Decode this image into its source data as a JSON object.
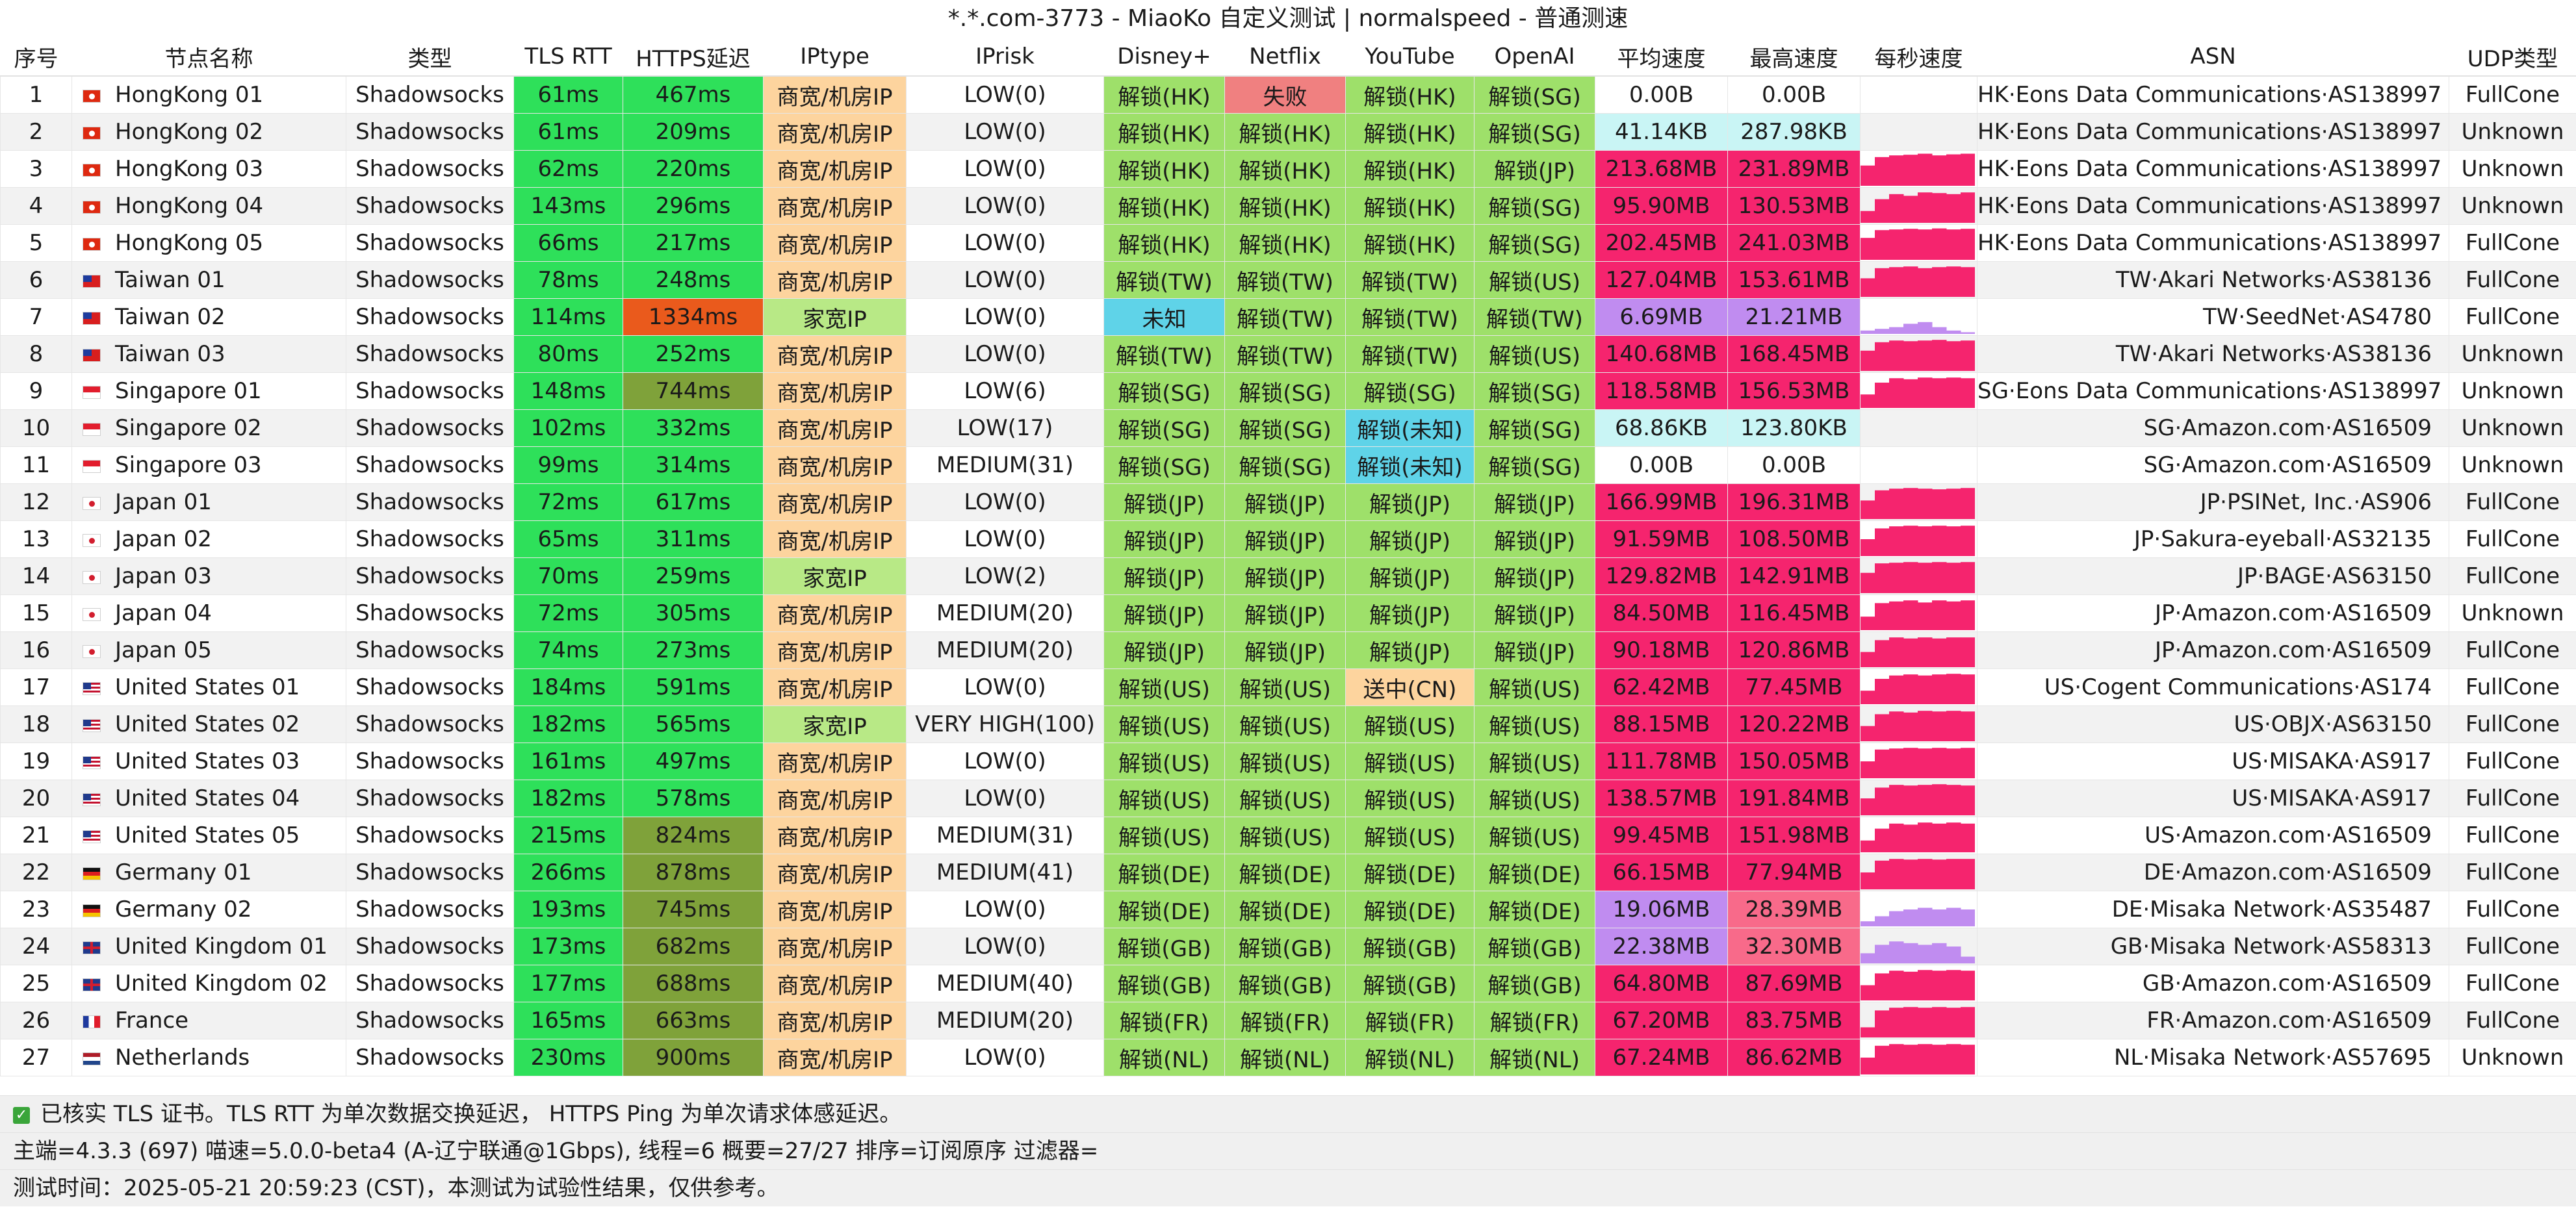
{
  "title": "*.*.com-3773 - MiaoKo 自定义测试 | normalspeed - 普通测速",
  "headers": [
    "序号",
    "节点名称",
    "类型",
    "TLS RTT",
    "HTTPS延迟",
    "IPtype",
    "IPrisk",
    "Disney+",
    "Netflix",
    "YouTube",
    "OpenAI",
    "平均速度",
    "最高速度",
    "每秒速度",
    "ASN",
    "UDP类型"
  ],
  "rows": [
    {
      "id": "1",
      "flag": "hk",
      "name": "HongKong 01",
      "type": "Shadowsocks",
      "tls": "61ms",
      "https": "467ms",
      "iptype": "商宽/机房IP",
      "iprisk": "LOW(0)",
      "disney": "解锁(HK)",
      "netflix": "失败",
      "youtube": "解锁(HK)",
      "openai": "解锁(SG)",
      "avg": "0.00B",
      "max": "0.00B",
      "persec": [],
      "asn": "HK·Eons Data Communications·AS138997",
      "udp": "FullCone"
    },
    {
      "id": "2",
      "flag": "hk",
      "name": "HongKong 02",
      "type": "Shadowsocks",
      "tls": "61ms",
      "https": "209ms",
      "iptype": "商宽/机房IP",
      "iprisk": "LOW(0)",
      "disney": "解锁(HK)",
      "netflix": "解锁(HK)",
      "youtube": "解锁(HK)",
      "openai": "解锁(SG)",
      "avg": "41.14KB",
      "max": "287.98KB",
      "persec": [],
      "asn": "HK·Eons Data Communications·AS138997",
      "udp": "Unknown"
    },
    {
      "id": "3",
      "flag": "hk",
      "name": "HongKong 03",
      "type": "Shadowsocks",
      "tls": "62ms",
      "https": "220ms",
      "iptype": "商宽/机房IP",
      "iprisk": "LOW(0)",
      "disney": "解锁(HK)",
      "netflix": "解锁(HK)",
      "youtube": "解锁(HK)",
      "openai": "解锁(JP)",
      "avg": "213.68MB",
      "max": "231.89MB",
      "persec": [
        0.6,
        0.85,
        0.9,
        0.92,
        0.95,
        0.9,
        0.93,
        0.95
      ],
      "asn": "HK·Eons Data Communications·AS138997",
      "udp": "Unknown"
    },
    {
      "id": "4",
      "flag": "hk",
      "name": "HongKong 04",
      "type": "Shadowsocks",
      "tls": "143ms",
      "https": "296ms",
      "iptype": "商宽/机房IP",
      "iprisk": "LOW(0)",
      "disney": "解锁(HK)",
      "netflix": "解锁(HK)",
      "youtube": "解锁(HK)",
      "openai": "解锁(SG)",
      "avg": "95.90MB",
      "max": "130.53MB",
      "persec": [
        0.35,
        0.7,
        0.85,
        0.8,
        0.9,
        0.88,
        0.85,
        0.9
      ],
      "asn": "HK·Eons Data Communications·AS138997",
      "udp": "Unknown"
    },
    {
      "id": "5",
      "flag": "hk",
      "name": "HongKong 05",
      "type": "Shadowsocks",
      "tls": "66ms",
      "https": "217ms",
      "iptype": "商宽/机房IP",
      "iprisk": "LOW(0)",
      "disney": "解锁(HK)",
      "netflix": "解锁(HK)",
      "youtube": "解锁(HK)",
      "openai": "解锁(SG)",
      "avg": "202.45MB",
      "max": "241.03MB",
      "persec": [
        0.65,
        0.88,
        0.9,
        0.92,
        0.9,
        0.93,
        0.9,
        0.92
      ],
      "asn": "HK·Eons Data Communications·AS138997",
      "udp": "FullCone"
    },
    {
      "id": "6",
      "flag": "tw",
      "name": "Taiwan 01",
      "type": "Shadowsocks",
      "tls": "78ms",
      "https": "248ms",
      "iptype": "商宽/机房IP",
      "iprisk": "LOW(0)",
      "disney": "解锁(TW)",
      "netflix": "解锁(TW)",
      "youtube": "解锁(TW)",
      "openai": "解锁(US)",
      "avg": "127.04MB",
      "max": "153.61MB",
      "persec": [
        0.55,
        0.85,
        0.88,
        0.9,
        0.85,
        0.88,
        0.9,
        0.88
      ],
      "asn": "TW·Akari Networks·AS38136",
      "udp": "FullCone"
    },
    {
      "id": "7",
      "flag": "tw",
      "name": "Taiwan 02",
      "type": "Shadowsocks",
      "tls": "114ms",
      "https": "1334ms",
      "iptype": "家宽IP",
      "iprisk": "LOW(0)",
      "disney": "未知",
      "netflix": "解锁(TW)",
      "youtube": "解锁(TW)",
      "openai": "解锁(TW)",
      "avg": "6.69MB",
      "max": "21.21MB",
      "persec": [
        0.1,
        0.15,
        0.2,
        0.3,
        0.35,
        0.2,
        0.1,
        0.05
      ],
      "asn": "TW·SeedNet·AS4780",
      "udp": "FullCone"
    },
    {
      "id": "8",
      "flag": "tw",
      "name": "Taiwan 03",
      "type": "Shadowsocks",
      "tls": "80ms",
      "https": "252ms",
      "iptype": "商宽/机房IP",
      "iprisk": "LOW(0)",
      "disney": "解锁(TW)",
      "netflix": "解锁(TW)",
      "youtube": "解锁(TW)",
      "openai": "解锁(US)",
      "avg": "140.68MB",
      "max": "168.45MB",
      "persec": [
        0.6,
        0.85,
        0.9,
        0.88,
        0.9,
        0.92,
        0.88,
        0.9
      ],
      "asn": "TW·Akari Networks·AS38136",
      "udp": "Unknown"
    },
    {
      "id": "9",
      "flag": "sg",
      "name": "Singapore 01",
      "type": "Shadowsocks",
      "tls": "148ms",
      "https": "744ms",
      "iptype": "商宽/机房IP",
      "iprisk": "LOW(6)",
      "disney": "解锁(SG)",
      "netflix": "解锁(SG)",
      "youtube": "解锁(SG)",
      "openai": "解锁(SG)",
      "avg": "118.58MB",
      "max": "156.53MB",
      "persec": [
        0.4,
        0.75,
        0.88,
        0.85,
        0.9,
        0.88,
        0.9,
        0.88
      ],
      "asn": "SG·Eons Data Communications·AS138997",
      "udp": "Unknown"
    },
    {
      "id": "10",
      "flag": "sg",
      "name": "Singapore 02",
      "type": "Shadowsocks",
      "tls": "102ms",
      "https": "332ms",
      "iptype": "商宽/机房IP",
      "iprisk": "LOW(17)",
      "disney": "解锁(SG)",
      "netflix": "解锁(SG)",
      "youtube": "解锁(未知)",
      "openai": "解锁(SG)",
      "avg": "68.86KB",
      "max": "123.80KB",
      "persec": [],
      "asn": "SG·Amazon.com·AS16509",
      "udp": "Unknown"
    },
    {
      "id": "11",
      "flag": "sg",
      "name": "Singapore 03",
      "type": "Shadowsocks",
      "tls": "99ms",
      "https": "314ms",
      "iptype": "商宽/机房IP",
      "iprisk": "MEDIUM(31)",
      "disney": "解锁(SG)",
      "netflix": "解锁(SG)",
      "youtube": "解锁(未知)",
      "openai": "解锁(SG)",
      "avg": "0.00B",
      "max": "0.00B",
      "persec": [],
      "asn": "SG·Amazon.com·AS16509",
      "udp": "Unknown"
    },
    {
      "id": "12",
      "flag": "jp",
      "name": "Japan 01",
      "type": "Shadowsocks",
      "tls": "72ms",
      "https": "617ms",
      "iptype": "商宽/机房IP",
      "iprisk": "LOW(0)",
      "disney": "解锁(JP)",
      "netflix": "解锁(JP)",
      "youtube": "解锁(JP)",
      "openai": "解锁(JP)",
      "avg": "166.99MB",
      "max": "196.31MB",
      "persec": [
        0.55,
        0.85,
        0.9,
        0.92,
        0.9,
        0.88,
        0.9,
        0.92
      ],
      "asn": "JP·PSINet, Inc.·AS906",
      "udp": "FullCone"
    },
    {
      "id": "13",
      "flag": "jp",
      "name": "Japan 02",
      "type": "Shadowsocks",
      "tls": "65ms",
      "https": "311ms",
      "iptype": "商宽/机房IP",
      "iprisk": "LOW(0)",
      "disney": "解锁(JP)",
      "netflix": "解锁(JP)",
      "youtube": "解锁(JP)",
      "openai": "解锁(JP)",
      "avg": "91.59MB",
      "max": "108.50MB",
      "persec": [
        0.5,
        0.82,
        0.88,
        0.9,
        0.88,
        0.9,
        0.88,
        0.9
      ],
      "asn": "JP·Sakura-eyeball·AS32135",
      "udp": "FullCone"
    },
    {
      "id": "14",
      "flag": "jp",
      "name": "Japan 03",
      "type": "Shadowsocks",
      "tls": "70ms",
      "https": "259ms",
      "iptype": "家宽IP",
      "iprisk": "LOW(2)",
      "disney": "解锁(JP)",
      "netflix": "解锁(JP)",
      "youtube": "解锁(JP)",
      "openai": "解锁(JP)",
      "avg": "129.82MB",
      "max": "142.91MB",
      "persec": [
        0.6,
        0.88,
        0.9,
        0.92,
        0.9,
        0.92,
        0.9,
        0.92
      ],
      "asn": "JP·BAGE·AS63150",
      "udp": "FullCone"
    },
    {
      "id": "15",
      "flag": "jp",
      "name": "Japan 04",
      "type": "Shadowsocks",
      "tls": "72ms",
      "https": "305ms",
      "iptype": "商宽/机房IP",
      "iprisk": "MEDIUM(20)",
      "disney": "解锁(JP)",
      "netflix": "解锁(JP)",
      "youtube": "解锁(JP)",
      "openai": "解锁(JP)",
      "avg": "84.50MB",
      "max": "116.45MB",
      "persec": [
        0.4,
        0.8,
        0.85,
        0.88,
        0.82,
        0.88,
        0.85,
        0.88
      ],
      "asn": "JP·Amazon.com·AS16509",
      "udp": "Unknown"
    },
    {
      "id": "16",
      "flag": "jp",
      "name": "Japan 05",
      "type": "Shadowsocks",
      "tls": "74ms",
      "https": "273ms",
      "iptype": "商宽/机房IP",
      "iprisk": "MEDIUM(20)",
      "disney": "解锁(JP)",
      "netflix": "解锁(JP)",
      "youtube": "解锁(JP)",
      "openai": "解锁(JP)",
      "avg": "90.18MB",
      "max": "120.86MB",
      "persec": [
        0.45,
        0.8,
        0.88,
        0.85,
        0.88,
        0.85,
        0.88,
        0.88
      ],
      "asn": "JP·Amazon.com·AS16509",
      "udp": "FullCone"
    },
    {
      "id": "17",
      "flag": "us",
      "name": "United States 01",
      "type": "Shadowsocks",
      "tls": "184ms",
      "https": "591ms",
      "iptype": "商宽/机房IP",
      "iprisk": "LOW(0)",
      "disney": "解锁(US)",
      "netflix": "解锁(US)",
      "youtube": "送中(CN)",
      "openai": "解锁(US)",
      "avg": "62.42MB",
      "max": "77.45MB",
      "persec": [
        0.4,
        0.75,
        0.85,
        0.88,
        0.85,
        0.88,
        0.9,
        0.88
      ],
      "asn": "US·Cogent Communications·AS174",
      "udp": "FullCone"
    },
    {
      "id": "18",
      "flag": "us",
      "name": "United States 02",
      "type": "Shadowsocks",
      "tls": "182ms",
      "https": "565ms",
      "iptype": "家宽IP",
      "iprisk": "VERY HIGH(100)",
      "disney": "解锁(US)",
      "netflix": "解锁(US)",
      "youtube": "解锁(US)",
      "openai": "解锁(US)",
      "avg": "88.15MB",
      "max": "120.22MB",
      "persec": [
        0.45,
        0.8,
        0.88,
        0.85,
        0.9,
        0.88,
        0.9,
        0.88
      ],
      "asn": "US·OBJX·AS63150",
      "udp": "FullCone"
    },
    {
      "id": "19",
      "flag": "us",
      "name": "United States 03",
      "type": "Shadowsocks",
      "tls": "161ms",
      "https": "497ms",
      "iptype": "商宽/机房IP",
      "iprisk": "LOW(0)",
      "disney": "解锁(US)",
      "netflix": "解锁(US)",
      "youtube": "解锁(US)",
      "openai": "解锁(US)",
      "avg": "111.78MB",
      "max": "150.05MB",
      "persec": [
        0.5,
        0.85,
        0.88,
        0.9,
        0.88,
        0.9,
        0.88,
        0.9
      ],
      "asn": "US·MISAKA·AS917",
      "udp": "FullCone"
    },
    {
      "id": "20",
      "flag": "us",
      "name": "United States 04",
      "type": "Shadowsocks",
      "tls": "182ms",
      "https": "578ms",
      "iptype": "商宽/机房IP",
      "iprisk": "LOW(0)",
      "disney": "解锁(US)",
      "netflix": "解锁(US)",
      "youtube": "解锁(US)",
      "openai": "解锁(US)",
      "avg": "138.57MB",
      "max": "191.84MB",
      "persec": [
        0.5,
        0.82,
        0.9,
        0.88,
        0.9,
        0.92,
        0.9,
        0.88
      ],
      "asn": "US·MISAKA·AS917",
      "udp": "FullCone"
    },
    {
      "id": "21",
      "flag": "us",
      "name": "United States 05",
      "type": "Shadowsocks",
      "tls": "215ms",
      "https": "824ms",
      "iptype": "商宽/机房IP",
      "iprisk": "MEDIUM(31)",
      "disney": "解锁(US)",
      "netflix": "解锁(US)",
      "youtube": "解锁(US)",
      "openai": "解锁(US)",
      "avg": "99.45MB",
      "max": "151.98MB",
      "persec": [
        0.35,
        0.7,
        0.85,
        0.82,
        0.88,
        0.85,
        0.88,
        0.85
      ],
      "asn": "US·Amazon.com·AS16509",
      "udp": "FullCone"
    },
    {
      "id": "22",
      "flag": "de",
      "name": "Germany 01",
      "type": "Shadowsocks",
      "tls": "266ms",
      "https": "878ms",
      "iptype": "商宽/机房IP",
      "iprisk": "MEDIUM(41)",
      "disney": "解锁(DE)",
      "netflix": "解锁(DE)",
      "youtube": "解锁(DE)",
      "openai": "解锁(DE)",
      "avg": "66.15MB",
      "max": "77.94MB",
      "persec": [
        0.5,
        0.85,
        0.9,
        0.88,
        0.9,
        0.88,
        0.9,
        0.9
      ],
      "asn": "DE·Amazon.com·AS16509",
      "udp": "FullCone"
    },
    {
      "id": "23",
      "flag": "de",
      "name": "Germany 02",
      "type": "Shadowsocks",
      "tls": "193ms",
      "https": "745ms",
      "iptype": "商宽/机房IP",
      "iprisk": "LOW(0)",
      "disney": "解锁(DE)",
      "netflix": "解锁(DE)",
      "youtube": "解锁(DE)",
      "openai": "解锁(DE)",
      "avg": "19.06MB",
      "max": "28.39MB",
      "persec": [
        0.15,
        0.3,
        0.45,
        0.5,
        0.55,
        0.5,
        0.55,
        0.5
      ],
      "asn": "DE·Misaka Network·AS35487",
      "udp": "FullCone"
    },
    {
      "id": "24",
      "flag": "gb",
      "name": "United Kingdom 01",
      "type": "Shadowsocks",
      "tls": "173ms",
      "https": "682ms",
      "iptype": "商宽/机房IP",
      "iprisk": "LOW(0)",
      "disney": "解锁(GB)",
      "netflix": "解锁(GB)",
      "youtube": "解锁(GB)",
      "openai": "解锁(GB)",
      "avg": "22.38MB",
      "max": "32.30MB",
      "persec": [
        0.3,
        0.55,
        0.65,
        0.6,
        0.55,
        0.6,
        0.5,
        0.2
      ],
      "asn": "GB·Misaka Network·AS58313",
      "udp": "FullCone"
    },
    {
      "id": "25",
      "flag": "gb",
      "name": "United Kingdom 02",
      "type": "Shadowsocks",
      "tls": "177ms",
      "https": "688ms",
      "iptype": "商宽/机房IP",
      "iprisk": "MEDIUM(40)",
      "disney": "解锁(GB)",
      "netflix": "解锁(GB)",
      "youtube": "解锁(GB)",
      "openai": "解锁(GB)",
      "avg": "64.80MB",
      "max": "87.69MB",
      "persec": [
        0.45,
        0.8,
        0.88,
        0.85,
        0.9,
        0.88,
        0.9,
        0.88
      ],
      "asn": "GB·Amazon.com·AS16509",
      "udp": "FullCone"
    },
    {
      "id": "26",
      "flag": "fr",
      "name": "France",
      "type": "Shadowsocks",
      "tls": "165ms",
      "https": "663ms",
      "iptype": "商宽/机房IP",
      "iprisk": "MEDIUM(20)",
      "disney": "解锁(FR)",
      "netflix": "解锁(FR)",
      "youtube": "解锁(FR)",
      "openai": "解锁(FR)",
      "avg": "67.20MB",
      "max": "83.75MB",
      "persec": [
        0.3,
        0.8,
        0.88,
        0.9,
        0.88,
        0.9,
        0.88,
        0.9
      ],
      "asn": "FR·Amazon.com·AS16509",
      "udp": "FullCone"
    },
    {
      "id": "27",
      "flag": "nl",
      "name": "Netherlands",
      "type": "Shadowsocks",
      "tls": "230ms",
      "https": "900ms",
      "iptype": "商宽/机房IP",
      "iprisk": "LOW(0)",
      "disney": "解锁(NL)",
      "netflix": "解锁(NL)",
      "youtube": "解锁(NL)",
      "openai": "解锁(NL)",
      "avg": "67.24MB",
      "max": "86.62MB",
      "persec": [
        0.5,
        0.85,
        0.9,
        0.88,
        0.9,
        0.88,
        0.9,
        0.88
      ],
      "asn": "NL·Misaka Network·AS57695",
      "udp": "Unknown"
    }
  ],
  "footer": {
    "verified": "已核实 TLS 证书。TLS RTT 为单次数据交换延迟， HTTPS Ping 为单次请求体感延迟。",
    "info": "主端=4.3.3 (697) 喵速=5.0.0-beta4 (A-辽宁联通@1Gbps), 线程=6 概要=27/27 排序=订阅原序 过滤器=",
    "time": "测试时间：2025-05-21 20:59:23 (CST)，本测试为试验性结果，仅供参考。"
  },
  "colors": {
    "latency_green": "#2ee05a",
    "latency_olive": "#7fa23a",
    "latency_orange": "#ea5a1c",
    "iptype_dc": "#fdd49e",
    "iptype_home": "#b8e986",
    "unlock_green": "#9ee06a",
    "fail_red": "#f08080",
    "unknown_cyan": "#5fd3e8",
    "cn_orange": "#fdd49e",
    "speed_pink": "#f5246e",
    "speed_light": "#c9f5f5",
    "speed_purple": "#c08cf0",
    "speed_salmon": "#f86a8a"
  }
}
